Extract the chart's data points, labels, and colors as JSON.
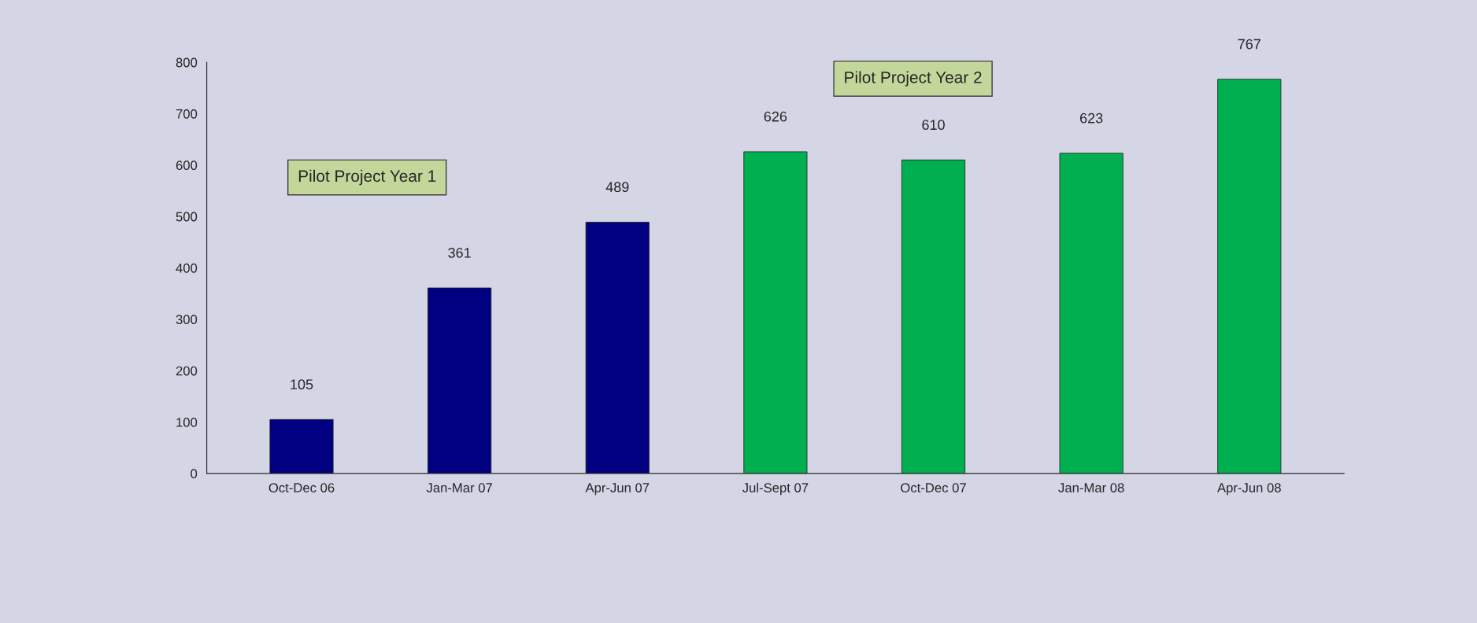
{
  "chart_data": {
    "type": "bar",
    "categories": [
      "Oct-Dec 06",
      "Jan-Mar 07",
      "Apr-Jun 07",
      "Jul-Sept 07",
      "Oct-Dec 07",
      "Jan-Mar 08",
      "Apr-Jun 08"
    ],
    "values": [
      105,
      361,
      489,
      626,
      610,
      623,
      767
    ],
    "colors": [
      "#000080",
      "#000080",
      "#000080",
      "#00b050",
      "#00b050",
      "#00b050",
      "#00b050"
    ],
    "ylim": [
      0,
      800
    ],
    "yticks": [
      0,
      100,
      200,
      300,
      400,
      500,
      600,
      700,
      800
    ],
    "data_labels": true,
    "grid": false,
    "annotations": [
      "Pilot Project Year 1",
      "Pilot Project Year 2"
    ]
  }
}
